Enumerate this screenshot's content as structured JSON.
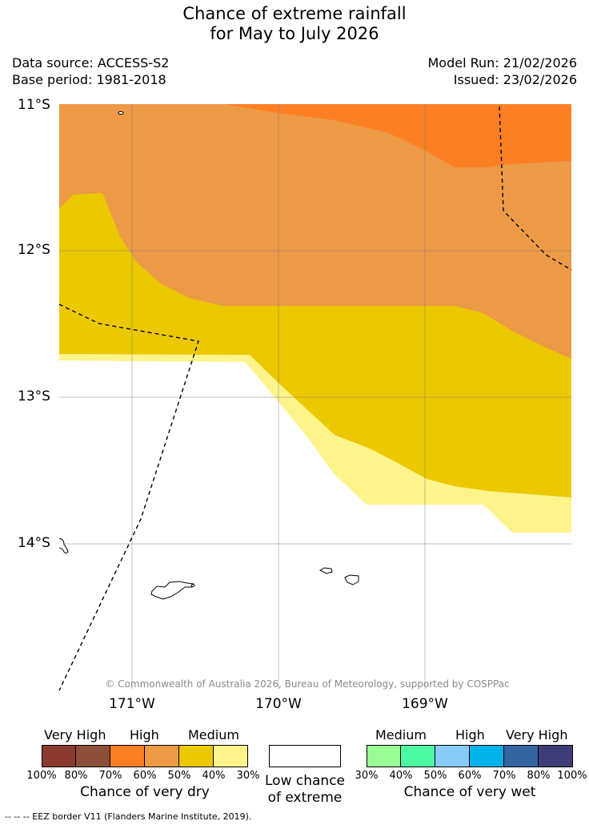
{
  "header": {
    "title_line1": "Chance of extreme rainfall",
    "title_line2": "for May to July 2026",
    "data_source": "Data source: ACCESS-S2",
    "base_period": "Base period: 1981-2018",
    "model_run": "Model Run: 21/02/2026",
    "issued": "Issued: 23/02/2026"
  },
  "map": {
    "lat_labels": [
      "11°S",
      "12°S",
      "13°S",
      "14°S"
    ],
    "lon_labels": [
      "171°W",
      "170°W",
      "169°W"
    ],
    "copyright": "© Commonwealth of Australia 2026, Bureau of Meteorology, supported by COSPPac",
    "colors": {
      "high_dry": "#fd7f24",
      "medium_high_dry": "#ec9a46",
      "medium_dry": "#ecc800",
      "low_dry": "#fdf48b",
      "low_chance": "#ffffff"
    }
  },
  "legend": {
    "dry": {
      "headings": [
        "Very High",
        "High",
        "Medium"
      ],
      "ticks": [
        "100%",
        "80%",
        "70%",
        "60%",
        "50%",
        "40%",
        "30%"
      ],
      "colors": [
        "#8b3a30",
        "#8d4e3a",
        "#fd7f24",
        "#ec9a46",
        "#ecc800",
        "#fdf48b"
      ],
      "caption": "Chance of very dry"
    },
    "neutral": {
      "caption_line1": "Low chance",
      "caption_line2": "of extreme"
    },
    "wet": {
      "headings": [
        "Medium",
        "High",
        "Very High"
      ],
      "ticks": [
        "30%",
        "40%",
        "50%",
        "60%",
        "70%",
        "80%",
        "100%"
      ],
      "colors": [
        "#99fb94",
        "#4dfaa4",
        "#88cbf9",
        "#00b2ea",
        "#3366a1",
        "#3f3d79"
      ],
      "caption": "Chance of very wet"
    }
  },
  "footnote": "--  --  -- EEZ border V11 (Flanders Marine Institute, 2019)."
}
